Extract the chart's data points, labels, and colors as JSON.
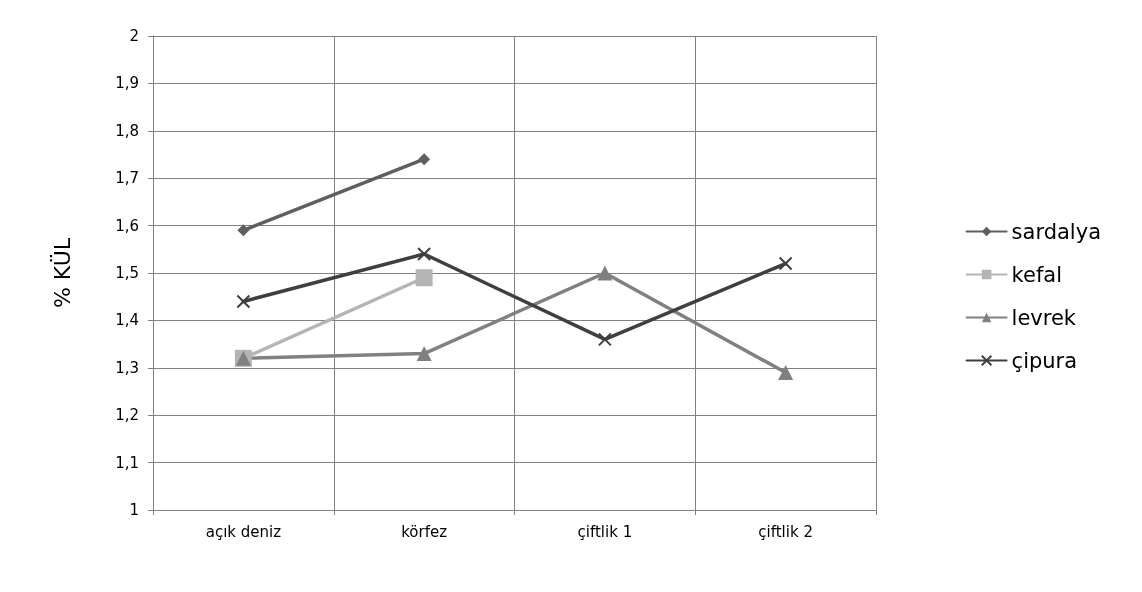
{
  "chart_data": {
    "type": "line",
    "ylabel": "% KÜL",
    "categories": [
      "açık deniz",
      "körfez",
      "çiftlik 1",
      "çiftlik 2"
    ],
    "series": [
      {
        "name": "sardalya",
        "color": "#5f5f5f",
        "marker": "diamond",
        "values": [
          1.59,
          1.74,
          null,
          null
        ]
      },
      {
        "name": "kefal",
        "color": "#b4b4b4",
        "marker": "square",
        "values": [
          1.32,
          1.49,
          null,
          null
        ]
      },
      {
        "name": "levrek",
        "color": "#808080",
        "marker": "triangle",
        "values": [
          1.32,
          1.33,
          1.5,
          1.29
        ]
      },
      {
        "name": "çipura",
        "color": "#3f3f3f",
        "marker": "cross",
        "values": [
          1.44,
          1.54,
          1.36,
          1.52
        ]
      }
    ],
    "ylim": [
      1,
      2
    ],
    "yticks": [
      1,
      {
        "value": 1.1,
        "label": "1,1"
      },
      {
        "value": 1.2,
        "label": "1,2"
      },
      {
        "value": 1.3,
        "label": "1,3"
      },
      {
        "value": 1.4,
        "label": "1,4"
      },
      {
        "value": 1.5,
        "label": "1,5"
      },
      {
        "value": 1.6,
        "label": "1,6"
      },
      {
        "value": 1.7,
        "label": "1,7"
      },
      {
        "value": 1.8,
        "label": "1,8"
      },
      {
        "value": 1.9,
        "label": "1,9"
      },
      2
    ],
    "grid": true,
    "legend": "right",
    "line_style": "solid"
  }
}
